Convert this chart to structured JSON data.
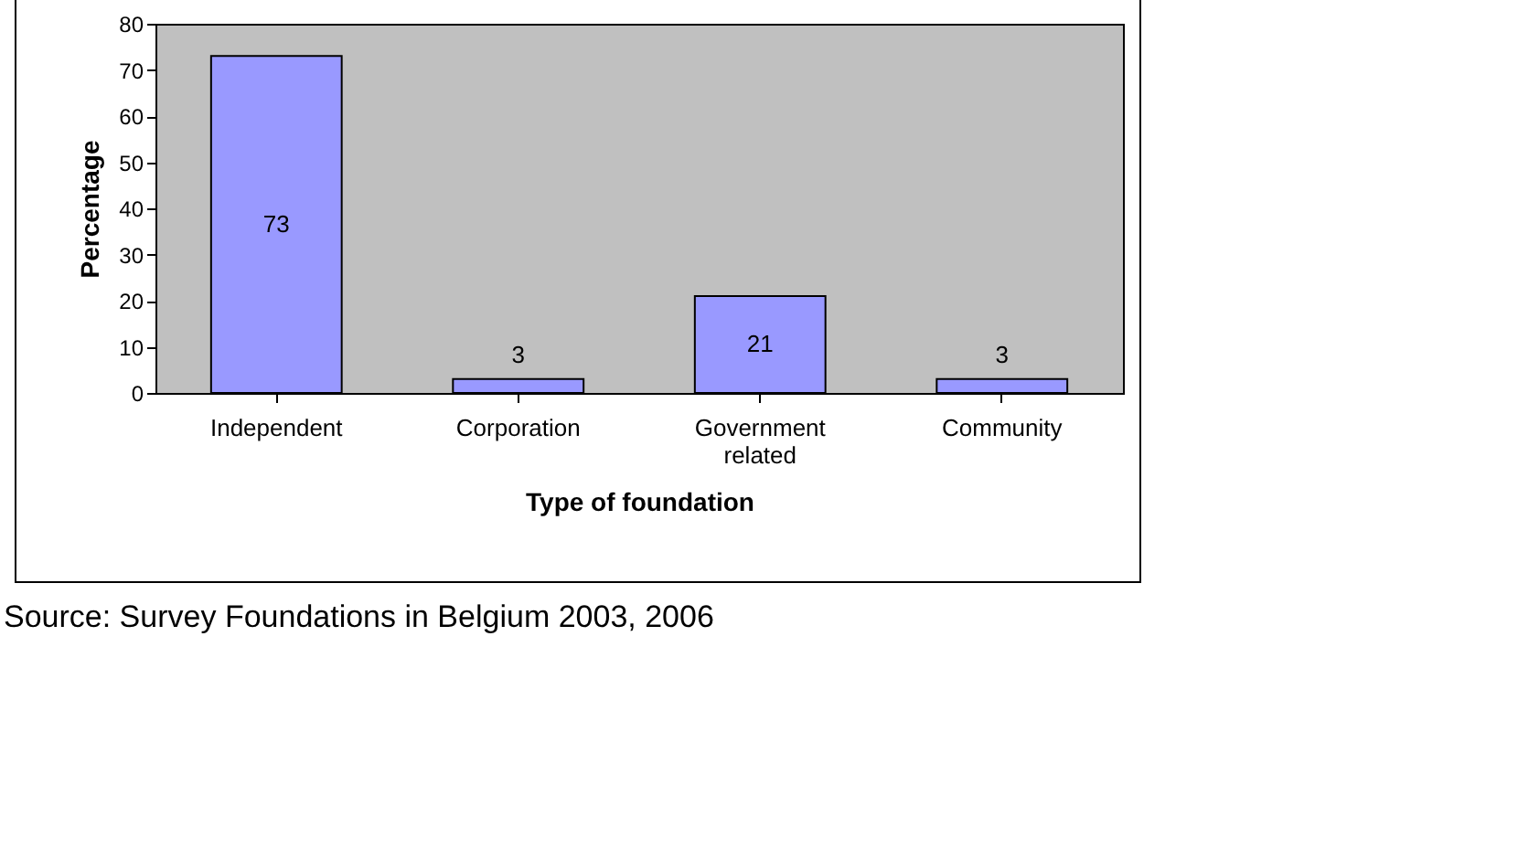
{
  "chart_data": {
    "type": "bar",
    "xlabel": "Type of foundation",
    "ylabel": "Percentage",
    "categories": [
      "Independent",
      "Corporation",
      "Government related",
      "Community"
    ],
    "values": [
      73,
      3,
      21,
      3
    ],
    "color": "#9999ff",
    "ylim": [
      0,
      80
    ],
    "yticks": [
      0,
      10,
      20,
      30,
      40,
      50,
      60,
      70,
      80
    ],
    "grid": false,
    "data_labels": true,
    "annotations": [
      "Source: Survey Foundations in Belgium 2003, 2006"
    ]
  }
}
